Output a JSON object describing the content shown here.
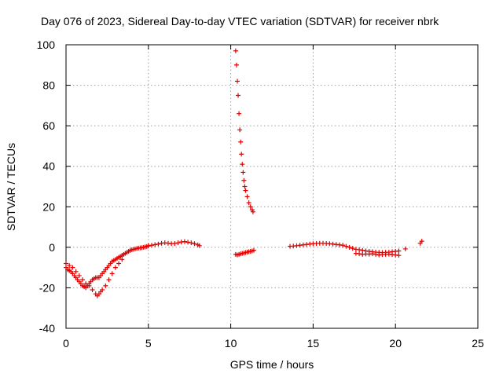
{
  "chart_data": {
    "type": "scatter",
    "title": "Day 076 of 2023, Sidereal Day-to-day VTEC variation (SDTVAR) for receiver nbrk",
    "xlabel": "GPS time / hours",
    "ylabel": "SDTVAR / TECUs",
    "xlim": [
      0,
      25
    ],
    "ylim": [
      -40,
      100
    ],
    "x_ticks": [
      0,
      5,
      10,
      15,
      20,
      25
    ],
    "y_ticks": [
      -40,
      -20,
      0,
      20,
      40,
      60,
      80,
      100
    ],
    "x_tick_labels": [
      "0",
      "5",
      "10",
      "15",
      "20",
      "25"
    ],
    "y_tick_labels": [
      "-40",
      "-20",
      "0",
      "20",
      "40",
      "60",
      "80",
      "100"
    ],
    "grid": true,
    "marker": "plus",
    "color": "#e00000",
    "series": [
      {
        "name": "early-dip",
        "x": [
          0.0,
          0.1,
          0.2,
          0.3,
          0.4,
          0.5,
          0.6,
          0.7,
          0.8,
          0.9,
          1.0,
          1.1,
          1.2,
          1.3,
          1.4,
          1.5,
          1.6,
          1.7,
          1.8,
          1.9,
          2.0,
          2.1,
          2.2,
          2.3,
          2.4,
          2.5,
          2.6,
          2.7,
          2.8,
          2.9,
          3.0,
          3.1,
          3.2,
          3.3,
          3.4,
          3.5,
          3.6,
          3.7,
          3.8,
          3.9,
          4.0,
          4.1,
          4.2,
          4.3,
          4.4,
          4.5,
          4.6,
          4.7,
          4.8,
          4.9,
          5.0
        ],
        "y": [
          -10,
          -11,
          -11.5,
          -12,
          -13,
          -14,
          -15,
          -16,
          -17,
          -18,
          -19,
          -19.5,
          -20,
          -19,
          -18,
          -17,
          -16,
          -15.5,
          -15,
          -15,
          -15,
          -14,
          -13,
          -12,
          -11,
          -10,
          -9,
          -8,
          -7,
          -6.5,
          -6,
          -5.5,
          -5,
          -4.5,
          -4,
          -3.5,
          -3,
          -2.5,
          -2,
          -1.5,
          -1.2,
          -1,
          -0.8,
          -0.6,
          -0.4,
          -0.3,
          -0.2,
          0,
          0.2,
          0.4,
          0.6
        ]
      },
      {
        "name": "early-dip-lower",
        "x": [
          0.0,
          0.2,
          0.4,
          0.6,
          0.8,
          1.0,
          1.2,
          1.4,
          1.6,
          1.8,
          1.9,
          2.0,
          2.1,
          2.2,
          2.4,
          2.6,
          2.8,
          3.0,
          3.2,
          3.4
        ],
        "y": [
          -8,
          -9,
          -10,
          -12,
          -14,
          -16,
          -18,
          -19,
          -21,
          -23,
          -24,
          -23,
          -22,
          -21,
          -19,
          -16,
          -13,
          -10,
          -8,
          -6
        ]
      },
      {
        "name": "morning-plateau",
        "x": [
          5.0,
          5.2,
          5.4,
          5.6,
          5.8,
          6.0,
          6.2,
          6.4,
          6.6,
          6.8,
          7.0,
          7.2,
          7.4,
          7.6,
          7.8,
          8.0,
          8.1
        ],
        "y": [
          0.8,
          1.0,
          1.3,
          1.6,
          2.0,
          2.2,
          2.0,
          1.8,
          1.9,
          2.2,
          2.6,
          2.8,
          2.5,
          2.2,
          1.8,
          1.2,
          0.8
        ]
      },
      {
        "name": "spike",
        "x": [
          10.3,
          10.35,
          10.4,
          10.45,
          10.5,
          10.55,
          10.6,
          10.65,
          10.7,
          10.75,
          10.8,
          10.85,
          10.9,
          11.0,
          11.1,
          11.2,
          11.3,
          11.35
        ],
        "y": [
          97,
          90,
          82,
          75,
          66,
          58,
          52,
          46,
          41,
          37,
          33,
          30,
          28,
          25,
          22,
          20,
          18.5,
          17.5
        ]
      },
      {
        "name": "spike-base",
        "x": [
          10.3,
          10.4,
          10.5,
          10.6,
          10.7,
          10.8,
          10.9,
          11.0,
          11.1,
          11.2,
          11.3,
          11.4
        ],
        "y": [
          -3.5,
          -3.8,
          -3.5,
          -3.2,
          -3,
          -2.8,
          -2.6,
          -2.4,
          -2.2,
          -2,
          -1.8,
          -1.5
        ]
      },
      {
        "name": "afternoon",
        "x": [
          13.6,
          13.8,
          14.0,
          14.2,
          14.4,
          14.6,
          14.8,
          15.0,
          15.2,
          15.4,
          15.6,
          15.8,
          16.0,
          16.2,
          16.4,
          16.6,
          16.8,
          17.0,
          17.2,
          17.4,
          17.6,
          17.8,
          18.0,
          18.2,
          18.4,
          18.6,
          18.8,
          19.0,
          19.2,
          19.4,
          19.6,
          19.8,
          20.0,
          20.2,
          20.6,
          21.5,
          21.6
        ],
        "y": [
          0.5,
          0.6,
          0.8,
          1.0,
          1.2,
          1.4,
          1.6,
          1.8,
          1.9,
          2.0,
          2.0,
          1.9,
          1.8,
          1.6,
          1.4,
          1.2,
          1.0,
          0.5,
          0,
          -0.5,
          -1,
          -1.2,
          -1.5,
          -1.8,
          -2,
          -2.2,
          -2.4,
          -2.5,
          -2.6,
          -2.5,
          -2.4,
          -2.2,
          -2.0,
          -1.8,
          -0.8,
          2.0,
          3.0
        ]
      },
      {
        "name": "afternoon-lower",
        "x": [
          17.6,
          17.8,
          18.0,
          18.2,
          18.4,
          18.6,
          18.8,
          19.0,
          19.2,
          19.4,
          19.6,
          19.8,
          20.0,
          20.2
        ],
        "y": [
          -3,
          -3.2,
          -3.5,
          -3.3,
          -3.4,
          -3.2,
          -3.5,
          -3.8,
          -3.6,
          -3.5,
          -3.4,
          -3.6,
          -3.8,
          -4
        ]
      }
    ]
  }
}
